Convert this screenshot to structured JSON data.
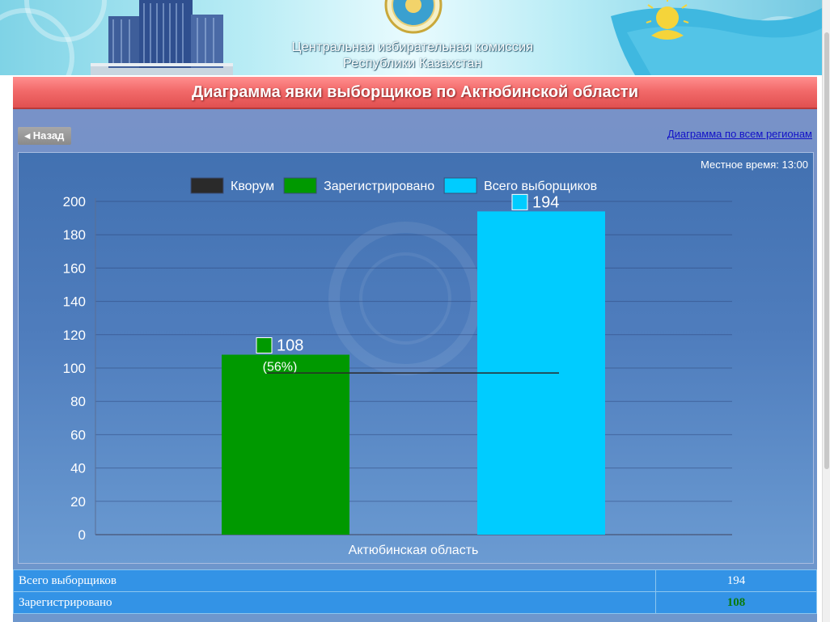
{
  "header": {
    "line1": "Центральная избирательная комиссия",
    "line2": "Республики Казахстан"
  },
  "page": {
    "title": "Диаграмма явки выборщиков по Актюбинской области",
    "back_label": "◂ Назад",
    "all_regions_link": "Диаграмма по всем регионам",
    "local_time": "Местное время: 13:00"
  },
  "chart_data": {
    "type": "bar",
    "categories": [
      "Актюбинская область"
    ],
    "series": [
      {
        "name": "Зарегистрировано",
        "values": [
          108
        ],
        "color": "#009900",
        "label": "108",
        "sublabel": "(56%)"
      },
      {
        "name": "Всего выборщиков",
        "values": [
          194
        ],
        "color": "#00ccff",
        "label": "194"
      }
    ],
    "quorum": {
      "name": "Кворум",
      "value": 97,
      "color": "#2a2a2a"
    },
    "legend": [
      "Кворум",
      "Зарегистрировано",
      "Всего выборщиков"
    ],
    "legend_position": "top",
    "ylim": [
      0,
      200
    ],
    "yticks": [
      0,
      20,
      40,
      60,
      80,
      100,
      120,
      140,
      160,
      180,
      200
    ],
    "grid": true,
    "title": "",
    "xlabel": "",
    "ylabel": ""
  },
  "summary": {
    "rows": [
      {
        "label": "Всего выборщиков",
        "value": "194"
      },
      {
        "label": "Зарегистрировано",
        "value": "108"
      }
    ]
  }
}
